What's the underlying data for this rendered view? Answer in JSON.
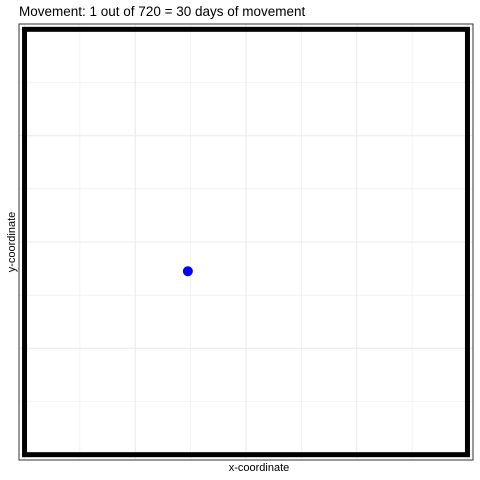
{
  "chart_data": {
    "type": "scatter",
    "title": "Movement: 1 out of 720 = 30 days of movement",
    "xlabel": "x-coordinate",
    "ylabel": "y-coordinate",
    "xlim": [
      -1,
      81
    ],
    "ylim": [
      -1,
      81
    ],
    "grid": true,
    "ticks_shown": false,
    "boundary": {
      "x": [
        0,
        80
      ],
      "y": [
        0,
        80
      ]
    },
    "points": [
      {
        "x": 29.5,
        "y": 34.5,
        "color": "#0000ff"
      }
    ]
  },
  "colors": {
    "point": "#0000ff",
    "boundary": "#000000",
    "grid": "#ebebeb",
    "panel_border": "#333333",
    "background": "#ffffff"
  }
}
